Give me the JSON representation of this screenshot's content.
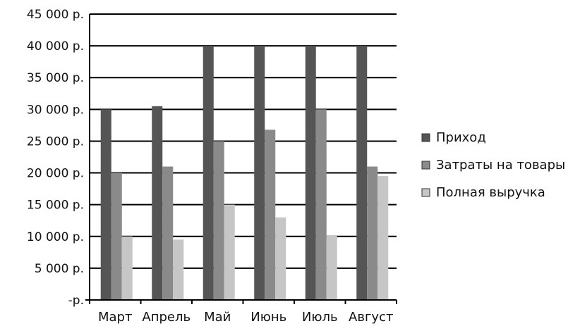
{
  "chart_data": {
    "type": "bar",
    "title": "",
    "xlabel": "",
    "ylabel": "",
    "categories": [
      "Март",
      "Апрель",
      "Май",
      "Июнь",
      "Июль",
      "Август"
    ],
    "series": [
      {
        "name": "Приход",
        "color": "#555555",
        "values": [
          30000,
          30500,
          40000,
          40000,
          40000,
          40000
        ]
      },
      {
        "name": "Затраты на товары",
        "color": "#8a8a8a",
        "values": [
          20000,
          21000,
          25000,
          26800,
          30000,
          21000
        ]
      },
      {
        "name": "Полная выручка",
        "color": "#c6c6c6",
        "values": [
          10000,
          9500,
          15000,
          13000,
          10200,
          19500
        ]
      }
    ],
    "ylim": [
      0,
      45000
    ],
    "yticks": [
      0,
      5000,
      10000,
      15000,
      20000,
      25000,
      30000,
      35000,
      40000,
      45000
    ],
    "ytick_labels": [
      "-р.",
      "5 000 р.",
      "10 000 р.",
      "15 000 р.",
      "20 000 р.",
      "25 000 р.",
      "30 000 р.",
      "35 000 р.",
      "40 000 р.",
      "45 000 р."
    ],
    "grid": true,
    "legend_position": "right"
  }
}
